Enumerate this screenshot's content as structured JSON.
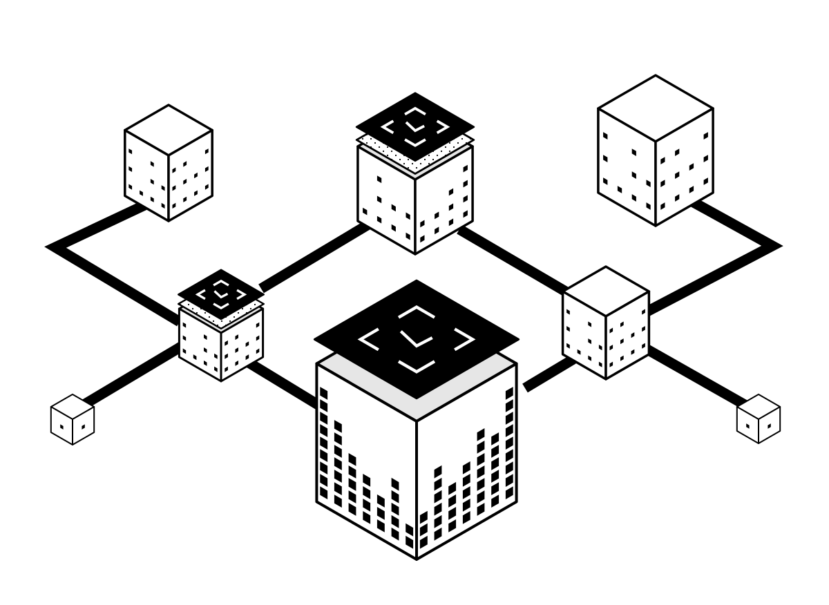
{
  "colors": {
    "background": "#ffffff",
    "ink": "#000000",
    "top_face": "#e6e6e6",
    "bracket": "#ffffff"
  },
  "icons": {
    "cube": "isometric-cube-icon",
    "window": "square-window-icon",
    "bracket": "scan-bracket-icon"
  },
  "nodes": [
    {
      "id": "hub",
      "role": "hub",
      "scanner_layers": true,
      "dotted_layer": false
    },
    {
      "id": "top-center",
      "role": "scanner",
      "scanner_layers": true,
      "dotted_layer": true
    },
    {
      "id": "left-scanner",
      "role": "scanner",
      "scanner_layers": true,
      "dotted_layer": true
    },
    {
      "id": "left-top",
      "role": "node",
      "scanner_layers": false
    },
    {
      "id": "right-top",
      "role": "node",
      "scanner_layers": false
    },
    {
      "id": "right-mid",
      "role": "node",
      "scanner_layers": false
    },
    {
      "id": "far-left-small",
      "role": "endpoint",
      "scanner_layers": false
    },
    {
      "id": "far-right-small",
      "role": "endpoint",
      "scanner_layers": false
    }
  ],
  "links": [
    {
      "from": "left-top",
      "to": "left-scanner"
    },
    {
      "from": "left-scanner",
      "to": "top-center"
    },
    {
      "from": "left-scanner",
      "to": "hub"
    },
    {
      "from": "left-scanner",
      "to": "far-left-small"
    },
    {
      "from": "top-center",
      "to": "right-mid"
    },
    {
      "from": "right-mid",
      "to": "hub"
    },
    {
      "from": "right-mid",
      "to": "right-top"
    },
    {
      "from": "right-mid",
      "to": "far-right-small"
    }
  ]
}
